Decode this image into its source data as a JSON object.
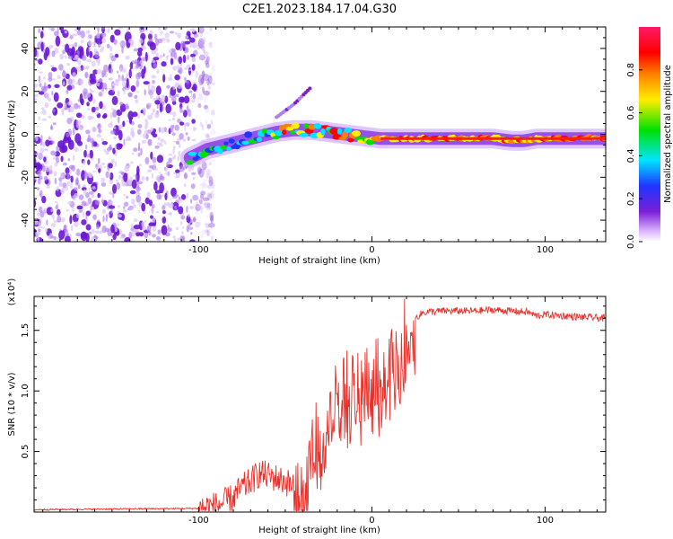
{
  "figure": {
    "title": "C2E1.2023.184.17.04.G30"
  },
  "colors": {
    "snr_line": "#e8302a",
    "spec_scatter": "#7a1fd6",
    "colorbar_stops": [
      "#ffffff",
      "#d9b3ff",
      "#7a1fd6",
      "#1f35ff",
      "#00e5ff",
      "#00e000",
      "#ffee00",
      "#ff8000",
      "#ff0000",
      "#ff1a66"
    ]
  },
  "chart_data": [
    {
      "id": "spectrogram",
      "type": "heatmap",
      "title": "",
      "xlabel": "Height of straight line (km)",
      "ylabel": "Frequency (Hz)",
      "xlim": [
        -195,
        135
      ],
      "ylim": [
        -50,
        50
      ],
      "xticks": [
        "-100",
        "0",
        "100"
      ],
      "yticks": [
        "-40",
        "-20",
        "0",
        "20",
        "40"
      ],
      "colorbar": {
        "label": "Normalized spectral amplitude",
        "range": [
          0,
          1
        ],
        "ticks": [
          "0.0",
          "0.2",
          "0.4",
          "0.6",
          "0.8"
        ]
      },
      "noise_region_x": [
        -195,
        -97
      ],
      "signal_trace": {
        "x": [
          -105,
          -95,
          -85,
          -75,
          -65,
          -55,
          -45,
          -35,
          -25,
          -15,
          -5,
          5,
          15,
          30,
          50,
          70,
          80,
          88,
          95,
          110,
          135
        ],
        "y": [
          -11,
          -7,
          -5,
          -3,
          -1,
          1,
          2,
          2,
          1,
          0,
          -1,
          -2,
          -2,
          -2,
          -2,
          -2,
          -3,
          -3,
          -2,
          -2,
          -2
        ]
      },
      "upper_branch": {
        "x": [
          -55,
          -45,
          -35
        ],
        "y": [
          8,
          14,
          22
        ]
      }
    },
    {
      "id": "snr",
      "type": "line",
      "title": "",
      "xlabel": "Height of straight line (km)",
      "ylabel": "SNR (10 * v/v)",
      "y_multiplier": "(x10⁴)",
      "xlim": [
        -195,
        135
      ],
      "ylim": [
        0,
        1.78
      ],
      "xticks": [
        "-100",
        "0",
        "100"
      ],
      "yticks": [
        "0.5",
        "1.0",
        "1.5"
      ],
      "series": [
        {
          "x": [
            -195,
            -150,
            -100,
            -90,
            -85,
            -80,
            -75,
            -70,
            -65,
            -60,
            -55,
            -50,
            -45,
            -40,
            -37,
            -35,
            -33,
            -30,
            -27,
            -25,
            -22,
            -20,
            -15,
            -10,
            -5,
            0,
            5,
            10,
            13,
            15,
            20,
            25,
            30,
            40,
            50,
            60,
            70,
            80,
            90,
            95,
            100,
            110,
            120,
            135
          ],
          "values": [
            0.02,
            0.025,
            0.03,
            0.05,
            0.08,
            0.12,
            0.2,
            0.25,
            0.32,
            0.3,
            0.28,
            0.25,
            0.22,
            0.2,
            0.3,
            0.6,
            0.55,
            0.6,
            0.7,
            0.9,
            0.85,
            0.9,
            1.0,
            1.0,
            1.05,
            1.1,
            1.1,
            1.2,
            1.25,
            1.35,
            1.45,
            1.6,
            1.65,
            1.66,
            1.66,
            1.66,
            1.67,
            1.66,
            1.65,
            1.62,
            1.63,
            1.62,
            1.61,
            1.6
          ]
        }
      ]
    }
  ]
}
